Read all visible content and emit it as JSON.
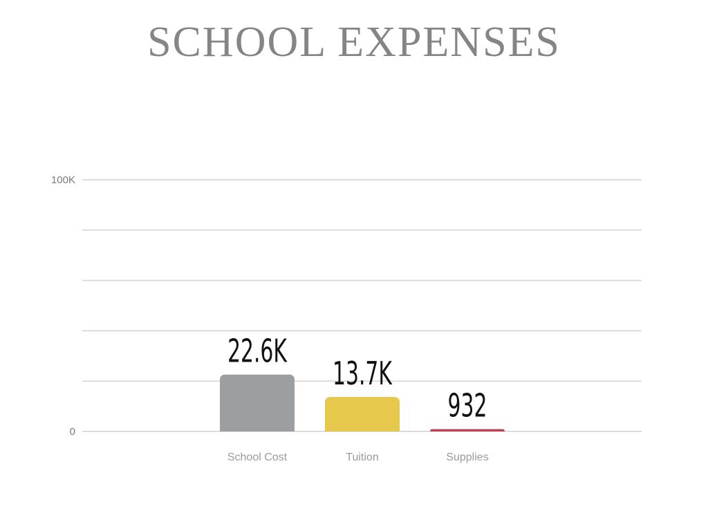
{
  "chart_data": {
    "type": "bar",
    "title": "SCHOOL EXPENSES",
    "categories": [
      "School Cost",
      "Tuition",
      "Supplies"
    ],
    "values": [
      22600,
      13700,
      932
    ],
    "data_labels": [
      "22.6K",
      "13.7K",
      "932"
    ],
    "colors": [
      "#9c9fa2",
      "#e6c84c",
      "#cc3a52"
    ],
    "ylim": [
      0,
      100000
    ],
    "y_ticks": [
      {
        "value": 0,
        "label": "0"
      },
      {
        "value": 20000,
        "label": ""
      },
      {
        "value": 40000,
        "label": ""
      },
      {
        "value": 60000,
        "label": ""
      },
      {
        "value": 80000,
        "label": ""
      },
      {
        "value": 100000,
        "label": "100K"
      }
    ],
    "grid": true,
    "legend": "none",
    "xlabel": "",
    "ylabel": ""
  }
}
